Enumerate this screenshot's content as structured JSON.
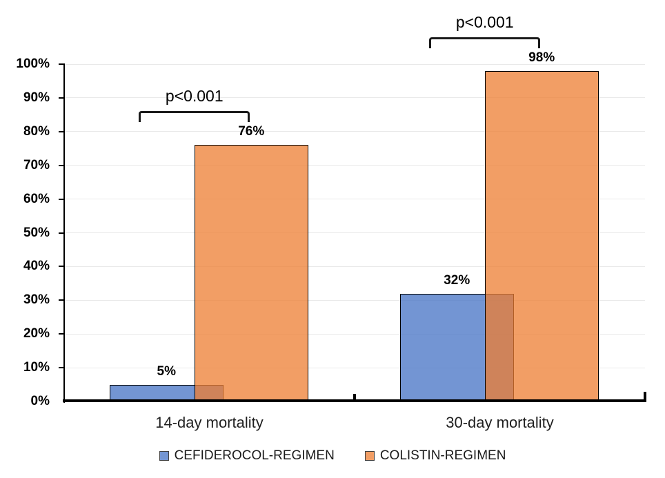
{
  "chart_data": {
    "type": "bar",
    "categories": [
      "14-day mortality",
      "30-day mortality"
    ],
    "series": [
      {
        "name": "CEFIDEROCOL-REGIMEN",
        "values": [
          5,
          32
        ],
        "color": "#4472C4",
        "fill_opacity": 0.75
      },
      {
        "name": "COLISTIN-REGIMEN",
        "values": [
          76,
          98
        ],
        "color": "#ED7D31",
        "fill_opacity": 0.75
      }
    ],
    "data_labels": [
      [
        "5%",
        "32%"
      ],
      [
        "76%",
        "98%"
      ]
    ],
    "annotations": [
      {
        "text": "p<0.001",
        "category": "14-day mortality"
      },
      {
        "text": "p<0.001",
        "category": "30-day mortality"
      }
    ],
    "title": "",
    "xlabel": "",
    "ylabel": "",
    "ylim": [
      0,
      100
    ],
    "yticks": [
      "0%",
      "10%",
      "20%",
      "30%",
      "40%",
      "50%",
      "60%",
      "70%",
      "80%",
      "90%",
      "100%"
    ],
    "grid": "horizontal-light-gray",
    "legend_position": "bottom",
    "bar_border_color": "#000000",
    "axis_color": "#000000",
    "overlap_blend_note": "series bars overlap; translucent orange over blue renders brown"
  }
}
